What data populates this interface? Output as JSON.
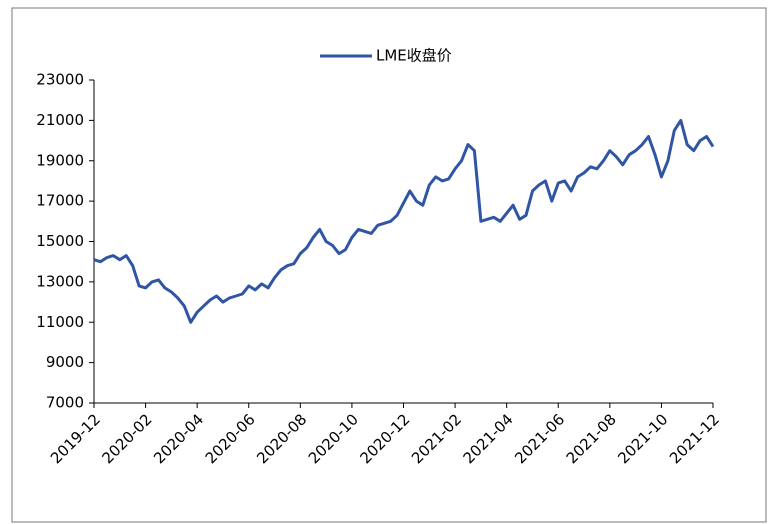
{
  "chart_data": {
    "type": "line",
    "categories": [
      "2019-12",
      null,
      null,
      null,
      null,
      null,
      null,
      null,
      "2020-02",
      null,
      null,
      null,
      null,
      null,
      null,
      null,
      "2020-04",
      null,
      null,
      null,
      null,
      null,
      null,
      null,
      "2020-06",
      null,
      null,
      null,
      null,
      null,
      null,
      null,
      "2020-08",
      null,
      null,
      null,
      null,
      null,
      null,
      null,
      "2020-10",
      null,
      null,
      null,
      null,
      null,
      null,
      null,
      "2020-12",
      null,
      null,
      null,
      null,
      null,
      null,
      null,
      "2021-02",
      null,
      null,
      null,
      null,
      null,
      null,
      null,
      "2021-04",
      null,
      null,
      null,
      null,
      null,
      null,
      null,
      "2021-06",
      null,
      null,
      null,
      null,
      null,
      null,
      null,
      "2021-08",
      null,
      null,
      null,
      null,
      null,
      null,
      null,
      "2021-10",
      null,
      null,
      null,
      null,
      null,
      null,
      null,
      "2021-12"
    ],
    "series": [
      {
        "name": "LME收盘价",
        "color": "#2f55a4",
        "values": [
          14100,
          14000,
          14200,
          14300,
          14100,
          14300,
          13800,
          12800,
          12700,
          13000,
          13100,
          12700,
          12500,
          12200,
          11800,
          11000,
          11500,
          11800,
          12100,
          12300,
          12000,
          12200,
          12300,
          12400,
          12800,
          12600,
          12900,
          12700,
          13200,
          13600,
          13800,
          13900,
          14400,
          14700,
          15200,
          15600,
          15000,
          14800,
          14400,
          14600,
          15200,
          15600,
          15500,
          15400,
          15800,
          15900,
          16000,
          16300,
          16900,
          17500,
          17000,
          16800,
          17800,
          18200,
          18000,
          18100,
          18600,
          19000,
          19800,
          19500,
          16000,
          16100,
          16200,
          16000,
          16400,
          16800,
          16100,
          16300,
          17500,
          17800,
          18000,
          17000,
          17900,
          18000,
          17500,
          18200,
          18400,
          18700,
          18600,
          19000,
          19500,
          19200,
          18800,
          19300,
          19500,
          19800,
          20200,
          19300,
          18200,
          19000,
          20500,
          21000,
          19800,
          19500,
          20000,
          20200,
          19700
        ]
      }
    ],
    "ylim": [
      7000,
      23000
    ],
    "yticks": [
      7000,
      9000,
      11000,
      13000,
      15000,
      17000,
      19000,
      21000,
      23000
    ],
    "grid": false,
    "legend": "top"
  }
}
